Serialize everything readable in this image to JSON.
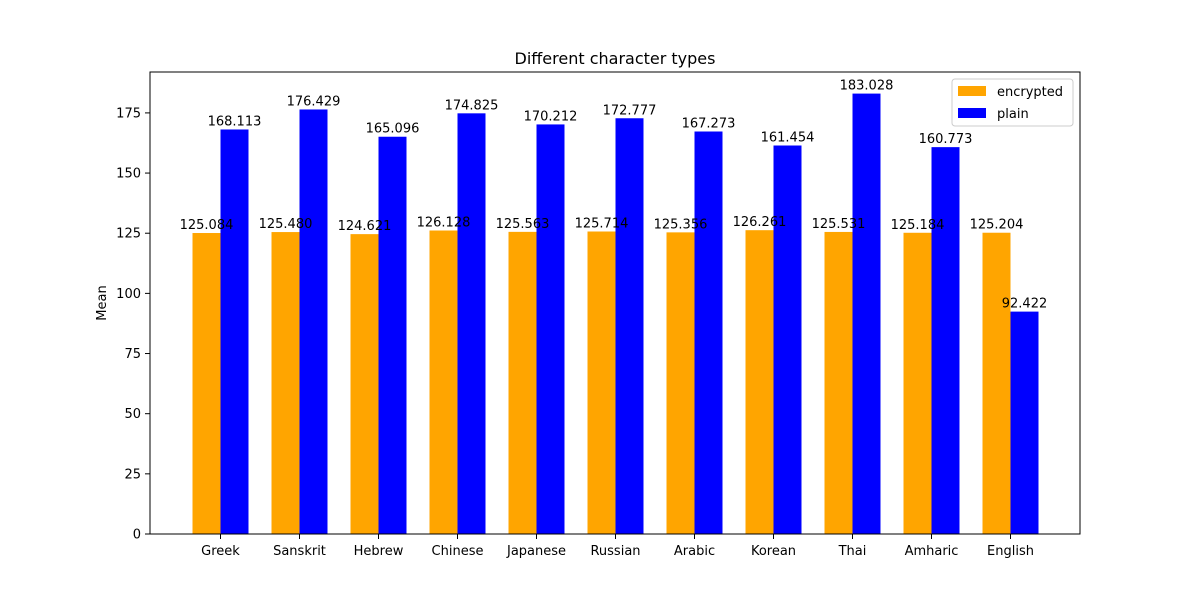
{
  "chart_data": {
    "type": "bar",
    "title": "Different character types",
    "xlabel": "",
    "ylabel": "Mean",
    "ylim": [
      0,
      192
    ],
    "yticks": [
      0,
      25,
      50,
      75,
      100,
      125,
      150,
      175
    ],
    "categories": [
      "Greek",
      "Sanskrit",
      "Hebrew",
      "Chinese",
      "Japanese",
      "Russian",
      "Arabic",
      "Korean",
      "Thai",
      "Amharic",
      "English"
    ],
    "series": [
      {
        "name": "encrypted",
        "color": "#FFA500",
        "values": [
          125.084,
          125.48,
          124.621,
          126.128,
          125.563,
          125.714,
          125.356,
          126.261,
          125.531,
          125.184,
          125.204
        ],
        "labels": [
          "125.084",
          "125.480",
          "124.621",
          "126.128",
          "125.563",
          "125.714",
          "125.356",
          "126.261",
          "125.531",
          "125.184",
          "125.204"
        ]
      },
      {
        "name": "plain",
        "color": "#0000FF",
        "values": [
          168.113,
          176.429,
          165.096,
          174.825,
          170.212,
          172.777,
          167.273,
          161.454,
          183.028,
          160.773,
          92.422
        ],
        "labels": [
          "168.113",
          "176.429",
          "165.096",
          "174.825",
          "170.212",
          "172.777",
          "167.273",
          "161.454",
          "183.028",
          "160.773",
          "92.422"
        ]
      }
    ],
    "legend": "top-right",
    "grid": false
  }
}
